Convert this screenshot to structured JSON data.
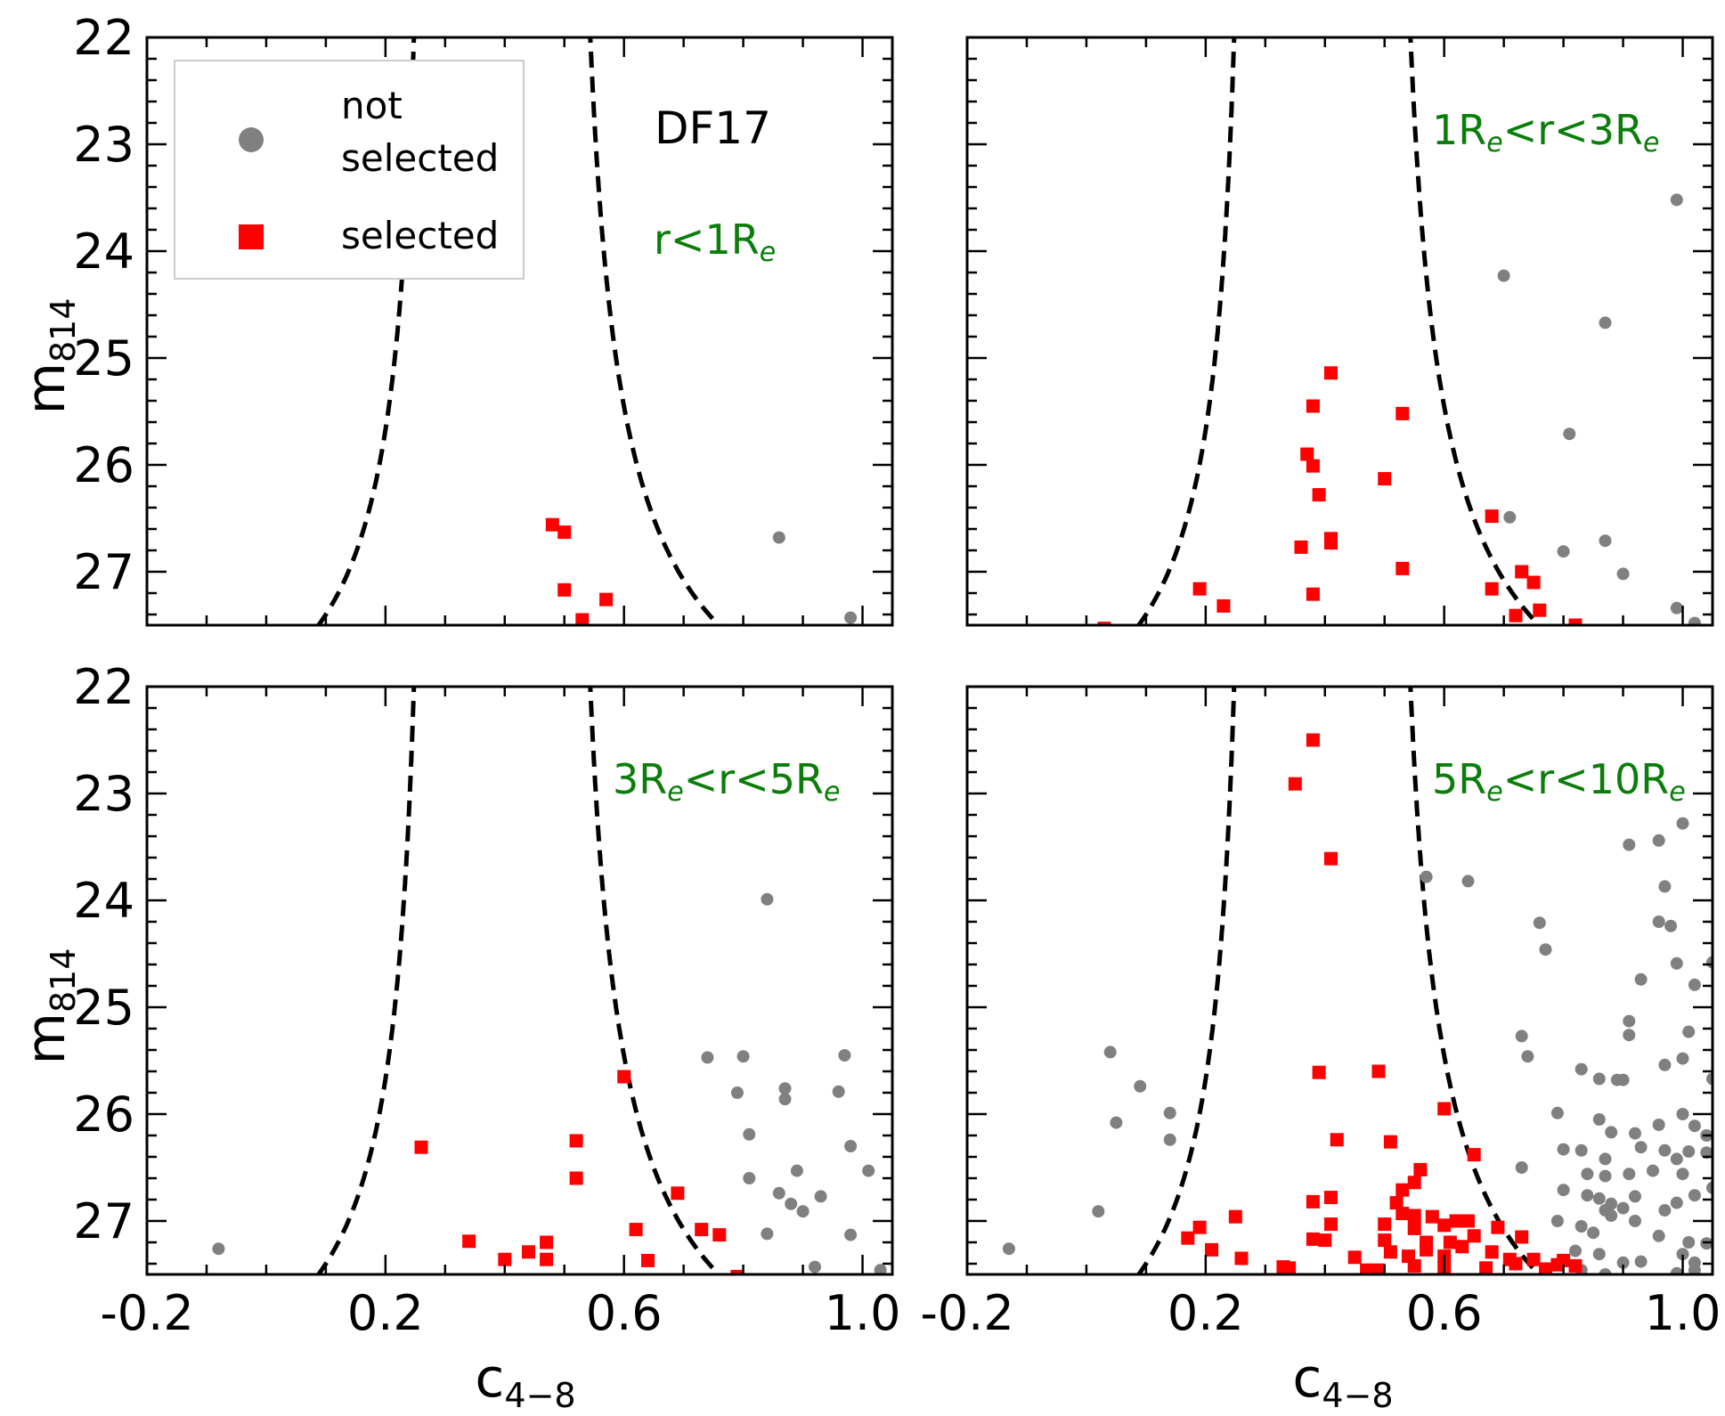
{
  "figure": {
    "ylabel_main": "m",
    "ylabel_sub": "814",
    "xlabel_main": "c",
    "xlabel_sub": "4−8"
  },
  "legend": {
    "not_selected_line1": "not",
    "not_selected_line2": "selected",
    "selected": "selected"
  },
  "galaxy_label": "DF17",
  "colors": {
    "not_selected": "#808080",
    "selected": "#ff0000",
    "region_label": "#0a7d0a",
    "curve": "#000000"
  },
  "chart_data": [
    {
      "type": "scatter",
      "panel": "top-left",
      "region": {
        "left": "r",
        "mid": "<",
        "right": "1R",
        "sub": "e"
      },
      "xlim": [
        -0.2,
        1.05
      ],
      "ylim": [
        27.5,
        22
      ],
      "xticks": [
        -0.2,
        0.2,
        0.6,
        1.0
      ],
      "yticks": [
        22,
        23,
        24,
        25,
        26,
        27
      ],
      "not_selected": [
        [
          0.86,
          26.68
        ],
        [
          0.98,
          27.43
        ]
      ],
      "selected": [
        [
          0.48,
          26.56
        ],
        [
          0.5,
          26.63
        ],
        [
          0.5,
          27.17
        ],
        [
          0.57,
          27.26
        ],
        [
          0.53,
          27.45
        ],
        [
          0.59,
          27.55
        ]
      ]
    },
    {
      "type": "scatter",
      "panel": "top-right",
      "region": {
        "left": "1R",
        "leftsub": "e",
        "mid": "<r<",
        "right": "3R",
        "sub": "e"
      },
      "xlim": [
        -0.2,
        1.05
      ],
      "ylim": [
        27.5,
        22
      ],
      "xticks": [
        -0.2,
        0.2,
        0.6,
        1.0
      ],
      "yticks": [
        22,
        23,
        24,
        25,
        26,
        27
      ],
      "not_selected": [
        [
          0.99,
          23.52
        ],
        [
          0.7,
          24.23
        ],
        [
          0.87,
          24.67
        ],
        [
          0.81,
          25.71
        ],
        [
          0.71,
          26.49
        ],
        [
          0.8,
          26.81
        ],
        [
          0.87,
          26.71
        ],
        [
          0.9,
          27.02
        ],
        [
          0.99,
          27.34
        ],
        [
          1.02,
          27.48
        ]
      ],
      "selected": [
        [
          0.41,
          25.14
        ],
        [
          0.38,
          25.45
        ],
        [
          0.53,
          25.52
        ],
        [
          0.37,
          25.9
        ],
        [
          0.38,
          26.01
        ],
        [
          0.39,
          26.28
        ],
        [
          0.5,
          26.13
        ],
        [
          0.36,
          26.77
        ],
        [
          0.41,
          26.69
        ],
        [
          0.41,
          26.73
        ],
        [
          0.53,
          26.97
        ],
        [
          0.68,
          26.48
        ],
        [
          0.19,
          27.16
        ],
        [
          0.23,
          27.32
        ],
        [
          0.38,
          27.21
        ],
        [
          0.68,
          27.16
        ],
        [
          0.73,
          27.0
        ],
        [
          0.75,
          27.1
        ],
        [
          0.72,
          27.41
        ],
        [
          0.76,
          27.36
        ],
        [
          0.82,
          27.5
        ],
        [
          0.03,
          27.53
        ],
        [
          0.42,
          27.55
        ]
      ]
    },
    {
      "type": "scatter",
      "panel": "bottom-left",
      "region": {
        "left": "3R",
        "leftsub": "e",
        "mid": "<r<",
        "right": "5R",
        "sub": "e"
      },
      "xlim": [
        -0.2,
        1.05
      ],
      "ylim": [
        27.5,
        22
      ],
      "xticks": [
        -0.2,
        0.2,
        0.6,
        1.0
      ],
      "yticks": [
        22,
        23,
        24,
        25,
        26,
        27
      ],
      "not_selected": [
        [
          0.84,
          23.99
        ],
        [
          0.74,
          25.47
        ],
        [
          0.8,
          25.46
        ],
        [
          0.79,
          25.8
        ],
        [
          0.87,
          25.76
        ],
        [
          0.87,
          25.86
        ],
        [
          0.97,
          25.45
        ],
        [
          0.96,
          25.79
        ],
        [
          0.81,
          26.19
        ],
        [
          0.81,
          26.6
        ],
        [
          0.89,
          26.53
        ],
        [
          0.98,
          26.3
        ],
        [
          1.01,
          26.53
        ],
        [
          0.86,
          26.74
        ],
        [
          0.88,
          26.84
        ],
        [
          0.9,
          26.91
        ],
        [
          0.93,
          26.77
        ],
        [
          0.84,
          27.12
        ],
        [
          0.98,
          27.13
        ],
        [
          0.92,
          27.43
        ],
        [
          1.03,
          27.46
        ],
        [
          -0.08,
          27.26
        ]
      ],
      "selected": [
        [
          0.6,
          25.65
        ],
        [
          0.26,
          26.31
        ],
        [
          0.52,
          26.25
        ],
        [
          0.52,
          26.6
        ],
        [
          0.69,
          26.74
        ],
        [
          0.62,
          27.08
        ],
        [
          0.73,
          27.08
        ],
        [
          0.76,
          27.13
        ],
        [
          0.34,
          27.19
        ],
        [
          0.4,
          27.36
        ],
        [
          0.44,
          27.29
        ],
        [
          0.47,
          27.2
        ],
        [
          0.47,
          27.36
        ],
        [
          0.64,
          27.37
        ],
        [
          0.79,
          27.52
        ]
      ]
    },
    {
      "type": "scatter",
      "panel": "bottom-right",
      "region": {
        "left": "5R",
        "leftsub": "e",
        "mid": "<r<",
        "right": "10R",
        "sub": "e"
      },
      "xlim": [
        -0.2,
        1.05
      ],
      "ylim": [
        27.5,
        22
      ],
      "xticks": [
        -0.2,
        0.2,
        0.6,
        1.0
      ],
      "yticks": [
        22,
        23,
        24,
        25,
        26,
        27
      ],
      "not_selected": [
        [
          1.0,
          23.28
        ],
        [
          0.96,
          23.44
        ],
        [
          0.91,
          23.48
        ],
        [
          0.97,
          23.87
        ],
        [
          0.57,
          23.78
        ],
        [
          0.64,
          23.82
        ],
        [
          0.76,
          24.21
        ],
        [
          0.77,
          24.46
        ],
        [
          0.96,
          24.2
        ],
        [
          0.98,
          24.24
        ],
        [
          1.05,
          24.58
        ],
        [
          0.99,
          24.59
        ],
        [
          0.93,
          24.74
        ],
        [
          1.02,
          24.79
        ],
        [
          0.91,
          25.13
        ],
        [
          0.91,
          25.26
        ],
        [
          0.73,
          25.27
        ],
        [
          1.01,
          25.23
        ],
        [
          0.74,
          25.46
        ],
        [
          0.04,
          25.42
        ],
        [
          0.09,
          25.74
        ],
        [
          0.05,
          26.08
        ],
        [
          0.14,
          25.99
        ],
        [
          0.14,
          26.24
        ],
        [
          0.97,
          25.54
        ],
        [
          1.0,
          25.48
        ],
        [
          1.05,
          25.67
        ],
        [
          0.83,
          25.58
        ],
        [
          0.86,
          25.67
        ],
        [
          0.89,
          25.68
        ],
        [
          0.9,
          25.68
        ],
        [
          0.79,
          25.99
        ],
        [
          0.86,
          26.05
        ],
        [
          0.96,
          26.1
        ],
        [
          1.0,
          26.0
        ],
        [
          1.02,
          26.11
        ],
        [
          1.04,
          26.2
        ],
        [
          0.88,
          26.17
        ],
        [
          0.92,
          26.18
        ],
        [
          0.8,
          26.33
        ],
        [
          0.83,
          26.34
        ],
        [
          0.87,
          26.42
        ],
        [
          0.93,
          26.31
        ],
        [
          0.97,
          26.34
        ],
        [
          0.99,
          26.42
        ],
        [
          1.01,
          26.35
        ],
        [
          1.04,
          26.36
        ],
        [
          0.73,
          26.5
        ],
        [
          0.84,
          26.56
        ],
        [
          0.87,
          26.58
        ],
        [
          0.91,
          26.56
        ],
        [
          0.95,
          26.53
        ],
        [
          1.0,
          26.56
        ],
        [
          1.05,
          26.69
        ],
        [
          0.8,
          26.71
        ],
        [
          0.84,
          26.76
        ],
        [
          0.86,
          26.79
        ],
        [
          0.88,
          26.84
        ],
        [
          0.9,
          26.88
        ],
        [
          0.92,
          26.77
        ],
        [
          0.87,
          26.9
        ],
        [
          0.88,
          26.95
        ],
        [
          0.97,
          26.9
        ],
        [
          0.99,
          26.83
        ],
        [
          1.02,
          26.76
        ],
        [
          0.79,
          27.0
        ],
        [
          0.83,
          27.05
        ],
        [
          0.85,
          27.11
        ],
        [
          0.92,
          27.0
        ],
        [
          0.96,
          27.14
        ],
        [
          1.01,
          27.2
        ],
        [
          1.04,
          27.21
        ],
        [
          0.82,
          27.28
        ],
        [
          0.86,
          27.31
        ],
        [
          0.9,
          27.39
        ],
        [
          0.93,
          27.38
        ],
        [
          1.0,
          27.31
        ],
        [
          1.02,
          27.39
        ],
        [
          0.83,
          27.46
        ],
        [
          0.87,
          27.5
        ],
        [
          0.99,
          27.49
        ],
        [
          1.02,
          27.46
        ],
        [
          0.02,
          26.91
        ],
        [
          -0.13,
          27.26
        ]
      ],
      "selected": [
        [
          0.38,
          22.5
        ],
        [
          0.35,
          22.91
        ],
        [
          0.41,
          23.61
        ],
        [
          0.39,
          25.61
        ],
        [
          0.49,
          25.6
        ],
        [
          0.6,
          25.95
        ],
        [
          0.42,
          26.24
        ],
        [
          0.51,
          26.26
        ],
        [
          0.65,
          26.38
        ],
        [
          0.56,
          26.52
        ],
        [
          0.55,
          26.64
        ],
        [
          0.53,
          26.71
        ],
        [
          0.52,
          26.83
        ],
        [
          0.38,
          26.82
        ],
        [
          0.41,
          26.78
        ],
        [
          0.53,
          26.93
        ],
        [
          0.55,
          26.95
        ],
        [
          0.58,
          26.96
        ],
        [
          0.5,
          27.03
        ],
        [
          0.6,
          27.04
        ],
        [
          0.62,
          27.0
        ],
        [
          0.64,
          27.0
        ],
        [
          0.69,
          27.06
        ],
        [
          0.25,
          26.96
        ],
        [
          0.17,
          27.16
        ],
        [
          0.19,
          27.06
        ],
        [
          0.21,
          27.27
        ],
        [
          0.41,
          27.03
        ],
        [
          0.5,
          27.18
        ],
        [
          0.55,
          27.07
        ],
        [
          0.57,
          27.2
        ],
        [
          0.61,
          27.2
        ],
        [
          0.65,
          27.14
        ],
        [
          0.73,
          27.15
        ],
        [
          0.38,
          27.17
        ],
        [
          0.4,
          27.18
        ],
        [
          0.45,
          27.34
        ],
        [
          0.51,
          27.29
        ],
        [
          0.54,
          27.33
        ],
        [
          0.57,
          27.27
        ],
        [
          0.6,
          27.33
        ],
        [
          0.63,
          27.24
        ],
        [
          0.68,
          27.29
        ],
        [
          0.71,
          27.36
        ],
        [
          0.75,
          27.36
        ],
        [
          0.26,
          27.35
        ],
        [
          0.33,
          27.43
        ],
        [
          0.34,
          27.44
        ],
        [
          0.47,
          27.46
        ],
        [
          0.49,
          27.46
        ],
        [
          0.55,
          27.42
        ],
        [
          0.6,
          27.44
        ],
        [
          0.67,
          27.44
        ],
        [
          0.72,
          27.4
        ],
        [
          0.77,
          27.45
        ],
        [
          0.79,
          27.41
        ],
        [
          0.8,
          27.37
        ],
        [
          0.82,
          27.42
        ]
      ]
    }
  ]
}
